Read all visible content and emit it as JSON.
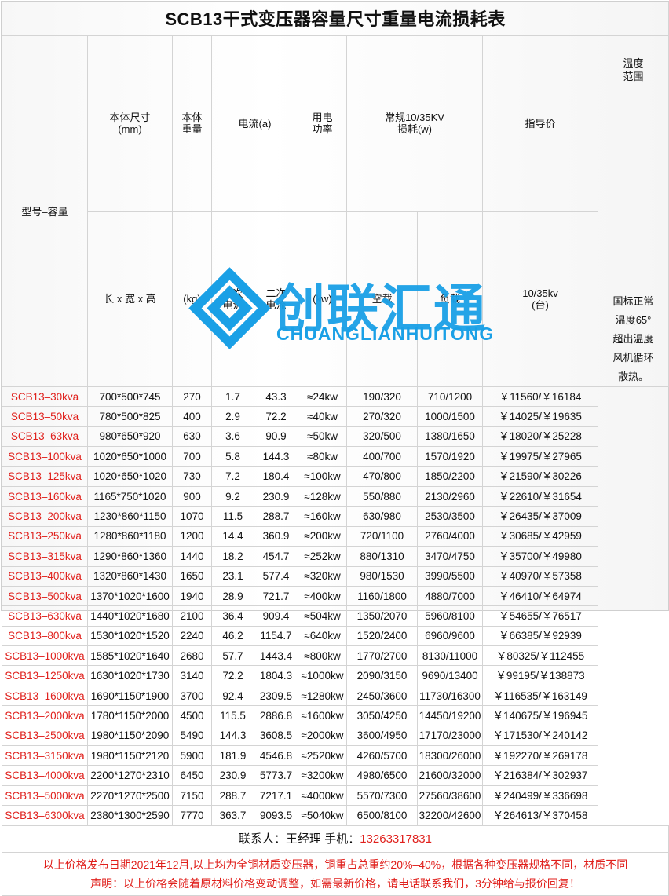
{
  "title": "SCB13干式变压器容量尺寸重量电流损耗表",
  "headers": {
    "model": "型号–容量",
    "size": "本体尺寸\n(mm)",
    "size_sub": "长 x 宽 x 高",
    "weight": "本体\n重量",
    "weight_sub": "(kg)",
    "current": "电流(a)",
    "current_primary": "一次\n电流",
    "current_secondary": "二次\n电流",
    "power": "用电\n功率",
    "power_sub": "(kw)",
    "loss": "常规10/35KV\n损耗(w)",
    "loss_noload": "空载",
    "loss_load": "负载",
    "price": "指导价",
    "price_sub": "10/35kv\n(台)",
    "temp": "温度\n范围"
  },
  "temp_note": "国标正常\n温度65°\n超出温度\n风机循环\n散热。",
  "rows": [
    [
      "SCB13–30kva",
      "700*500*745",
      "270",
      "1.7",
      "43.3",
      "≈24kw",
      "190/320",
      "710/1200",
      "￥11560/￥16184"
    ],
    [
      "SCB13–50kva",
      "780*500*825",
      "400",
      "2.9",
      "72.2",
      "≈40kw",
      "270/320",
      "1000/1500",
      "￥14025/￥19635"
    ],
    [
      "SCB13–63kva",
      "980*650*920",
      "630",
      "3.6",
      "90.9",
      "≈50kw",
      "320/500",
      "1380/1650",
      "￥18020/￥25228"
    ],
    [
      "SCB13–100kva",
      "1020*650*1000",
      "700",
      "5.8",
      "144.3",
      "≈80kw",
      "400/700",
      "1570/1920",
      "￥19975/￥27965"
    ],
    [
      "SCB13–125kva",
      "1020*650*1020",
      "730",
      "7.2",
      "180.4",
      "≈100kw",
      "470/800",
      "1850/2200",
      "￥21590/￥30226"
    ],
    [
      "SCB13–160kva",
      "1165*750*1020",
      "900",
      "9.2",
      "230.9",
      "≈128kw",
      "550/880",
      "2130/2960",
      "￥22610/￥31654"
    ],
    [
      "SCB13–200kva",
      "1230*860*1150",
      "1070",
      "11.5",
      "288.7",
      "≈160kw",
      "630/980",
      "2530/3500",
      "￥26435/￥37009"
    ],
    [
      "SCB13–250kva",
      "1280*860*1180",
      "1200",
      "14.4",
      "360.9",
      "≈200kw",
      "720/1100",
      "2760/4000",
      "￥30685/￥42959"
    ],
    [
      "SCB13–315kva",
      "1290*860*1360",
      "1440",
      "18.2",
      "454.7",
      "≈252kw",
      "880/1310",
      "3470/4750",
      "￥35700/￥49980"
    ],
    [
      "SCB13–400kva",
      "1320*860*1430",
      "1650",
      "23.1",
      "577.4",
      "≈320kw",
      "980/1530",
      "3990/5500",
      "￥40970/￥57358"
    ],
    [
      "SCB13–500kva",
      "1370*1020*1600",
      "1940",
      "28.9",
      "721.7",
      "≈400kw",
      "1160/1800",
      "4880/7000",
      "￥46410/￥64974"
    ],
    [
      "SCB13–630kva",
      "1440*1020*1680",
      "2100",
      "36.4",
      "909.4",
      "≈504kw",
      "1350/2070",
      "5960/8100",
      "￥54655/￥76517"
    ],
    [
      "SCB13–800kva",
      "1530*1020*1520",
      "2240",
      "46.2",
      "1154.7",
      "≈640kw",
      "1520/2400",
      "6960/9600",
      "￥66385/￥92939"
    ],
    [
      "SCB13–1000kva",
      "1585*1020*1640",
      "2680",
      "57.7",
      "1443.4",
      "≈800kw",
      "1770/2700",
      "8130/11000",
      "￥80325/￥112455"
    ],
    [
      "SCB13–1250kva",
      "1630*1020*1730",
      "3140",
      "72.2",
      "1804.3",
      "≈1000kw",
      "2090/3150",
      "9690/13400",
      "￥99195/￥138873"
    ],
    [
      "SCB13–1600kva",
      "1690*1150*1900",
      "3700",
      "92.4",
      "2309.5",
      "≈1280kw",
      "2450/3600",
      "11730/16300",
      "￥116535/￥163149"
    ],
    [
      "SCB13–2000kva",
      "1780*1150*2000",
      "4500",
      "115.5",
      "2886.8",
      "≈1600kw",
      "3050/4250",
      "14450/19200",
      "￥140675/￥196945"
    ],
    [
      "SCB13–2500kva",
      "1980*1150*2090",
      "5490",
      "144.3",
      "3608.5",
      "≈2000kw",
      "3600/4950",
      "17170/23000",
      "￥171530/￥240142"
    ],
    [
      "SCB13–3150kva",
      "1980*1150*2120",
      "5900",
      "181.9",
      "4546.8",
      "≈2520kw",
      "4260/5700",
      "18300/26000",
      "￥192270/￥269178"
    ],
    [
      "SCB13–4000kva",
      "2200*1270*2310",
      "6450",
      "230.9",
      "5773.7",
      "≈3200kw",
      "4980/6500",
      "21600/32000",
      "￥216384/￥302937"
    ],
    [
      "SCB13–5000kva",
      "2270*1270*2500",
      "7150",
      "288.7",
      "7217.1",
      "≈4000kw",
      "5570/7300",
      "27560/38600",
      "￥240499/￥336698"
    ],
    [
      "SCB13–6300kva",
      "2380*1300*2590",
      "7770",
      "363.7",
      "9093.5",
      "≈5040kw",
      "6500/8100",
      "32200/42600",
      "￥264613/￥370458"
    ]
  ],
  "contact": {
    "label": "联系人：王经理  手机：",
    "phone": "13263317831"
  },
  "notes": [
    "以上价格发布日期2021年12月,以上均为全铜材质变压器，铜重占总重约20%–40%，根据各种变压器规格不同，材质不同",
    "声明：以上价格会随着原材料价格变动调整，如需最新价格，请电话联系我们，3分钟给与报价回复！"
  ],
  "watermark": {
    "cn": "创联汇通",
    "en": "CHUANGLIANHUITONG"
  },
  "colors": {
    "accent_red": "#e0201c",
    "watermark_blue": "#1aa0e6"
  }
}
